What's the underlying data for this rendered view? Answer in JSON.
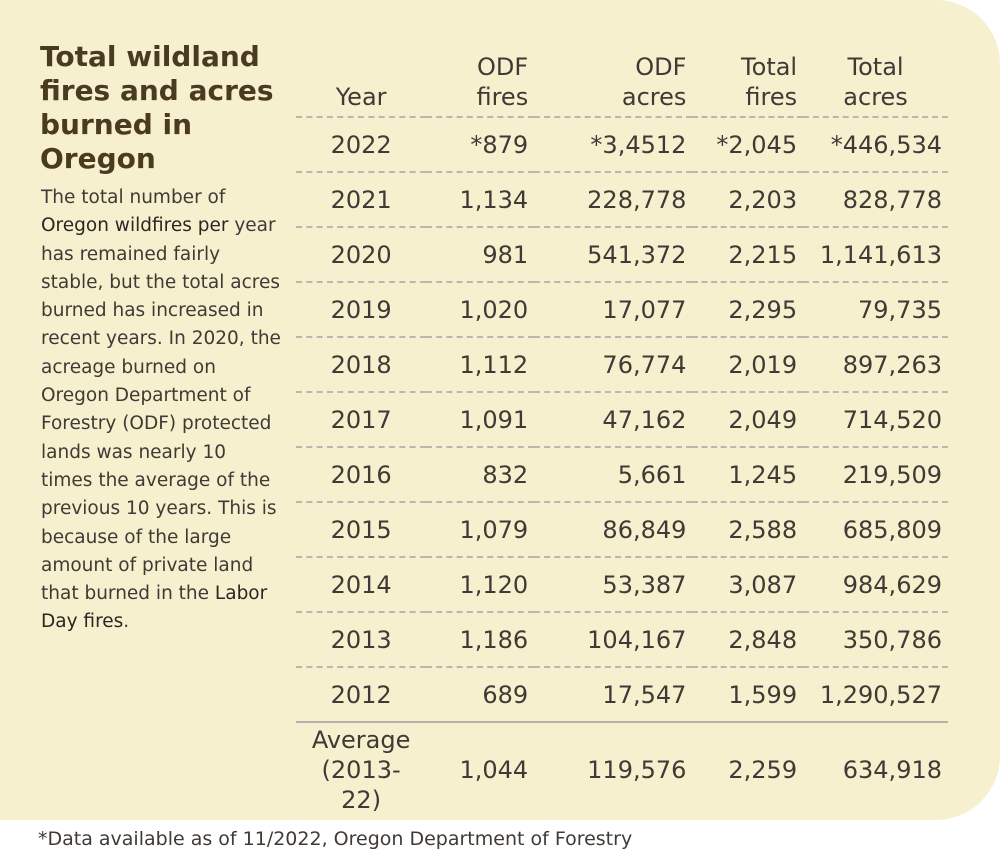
{
  "title": "Total wildland fires and acres burned in Oregon",
  "description": {
    "text_1": "The total number of ",
    "em_1": "Oregon wildfires per",
    "text_2": " year has remained fairly stable, but the total acres burned has increased in recent years. In 2020, the acreage burned on Oregon Department of Forestry (ODF) protected lands was nearly 10 times the average of the previous 10 years. This is because of the large amount of private land that burned in the ",
    "em_2": "Labor Day fires",
    "text_3": "."
  },
  "table": {
    "headers": {
      "year": [
        "",
        "Year"
      ],
      "odf_fires": [
        "ODF",
        "fires"
      ],
      "odf_acres": [
        "ODF",
        "acres"
      ],
      "total_fires": [
        "Total",
        "fires"
      ],
      "total_acres": [
        "Total",
        "acres"
      ]
    },
    "rows": [
      {
        "year": "2022",
        "odf_fires": "*879",
        "odf_acres": "*3,4512",
        "total_fires": "*2,045",
        "total_acres": "*446,534"
      },
      {
        "year": "2021",
        "odf_fires": "1,134",
        "odf_acres": "228,778",
        "total_fires": "2,203",
        "total_acres": "828,778"
      },
      {
        "year": "2020",
        "odf_fires": "981",
        "odf_acres": "541,372",
        "total_fires": "2,215",
        "total_acres": "1,141,613"
      },
      {
        "year": "2019",
        "odf_fires": "1,020",
        "odf_acres": "17,077",
        "total_fires": "2,295",
        "total_acres": "79,735"
      },
      {
        "year": "2018",
        "odf_fires": "1,112",
        "odf_acres": "76,774",
        "total_fires": "2,019",
        "total_acres": "897,263"
      },
      {
        "year": "2017",
        "odf_fires": "1,091",
        "odf_acres": "47,162",
        "total_fires": "2,049",
        "total_acres": "714,520"
      },
      {
        "year": "2016",
        "odf_fires": "832",
        "odf_acres": "5,661",
        "total_fires": "1,245",
        "total_acres": "219,509"
      },
      {
        "year": "2015",
        "odf_fires": "1,079",
        "odf_acres": "86,849",
        "total_fires": "2,588",
        "total_acres": "685,809"
      },
      {
        "year": "2014",
        "odf_fires": "1,120",
        "odf_acres": "53,387",
        "total_fires": "3,087",
        "total_acres": "984,629"
      },
      {
        "year": "2013",
        "odf_fires": "1,186",
        "odf_acres": "104,167",
        "total_fires": "2,848",
        "total_acres": "350,786"
      },
      {
        "year": "2012",
        "odf_fires": "689",
        "odf_acres": "17,547",
        "total_fires": "1,599",
        "total_acres": "1,290,527"
      }
    ],
    "average": {
      "label_line_1": "Average",
      "label_line_2": "(2013-22)",
      "odf_fires": "1,044",
      "odf_acres": "119,576",
      "total_fires": "2,259",
      "total_acres": "634,918"
    }
  },
  "footnote": "*Data available as of 11/2022, Oregon Department of Forestry",
  "colors": {
    "card_background": "#f6f0cf",
    "title_color": "#4a3a20",
    "text_color": "#3f3a35",
    "divider_color": "#bab6b2"
  }
}
